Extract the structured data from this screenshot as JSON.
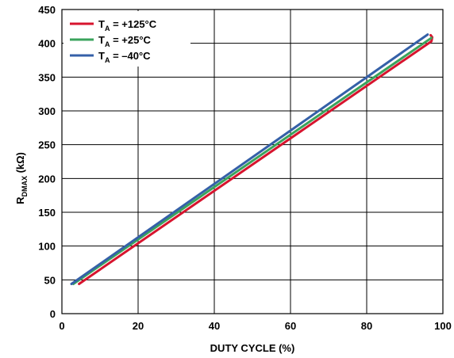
{
  "chart_data": {
    "type": "line",
    "xlabel": "DUTY CYCLE (%)",
    "ylabel_main": "R",
    "ylabel_sub": "DMAX",
    "ylabel_unit": " (kΩ)",
    "xlim": [
      0,
      100
    ],
    "ylim": [
      0,
      450
    ],
    "x_ticks": [
      "0",
      "20",
      "40",
      "60",
      "80",
      "100"
    ],
    "y_ticks": [
      "0",
      "50",
      "100",
      "150",
      "200",
      "250",
      "300",
      "350",
      "400",
      "450"
    ],
    "grid": true,
    "legend_position": "top-left",
    "series": [
      {
        "name_main": "T",
        "name_sub": "A",
        "name_rest": " = +125°C",
        "color": "#d7142e",
        "points": [
          [
            4.5,
            44
          ],
          [
            97,
            403
          ],
          [
            97.2,
            409
          ],
          [
            96.8,
            412
          ]
        ]
      },
      {
        "name_main": "T",
        "name_sub": "A",
        "name_rest": " = +25°C",
        "color": "#3aa35c",
        "points": [
          [
            3,
            44
          ],
          [
            97,
            408
          ]
        ]
      },
      {
        "name_main": "T",
        "name_sub": "A",
        "name_rest": " = –40°C",
        "color": "#3560a8",
        "points": [
          [
            2.5,
            44
          ],
          [
            96,
            413
          ]
        ]
      }
    ]
  }
}
